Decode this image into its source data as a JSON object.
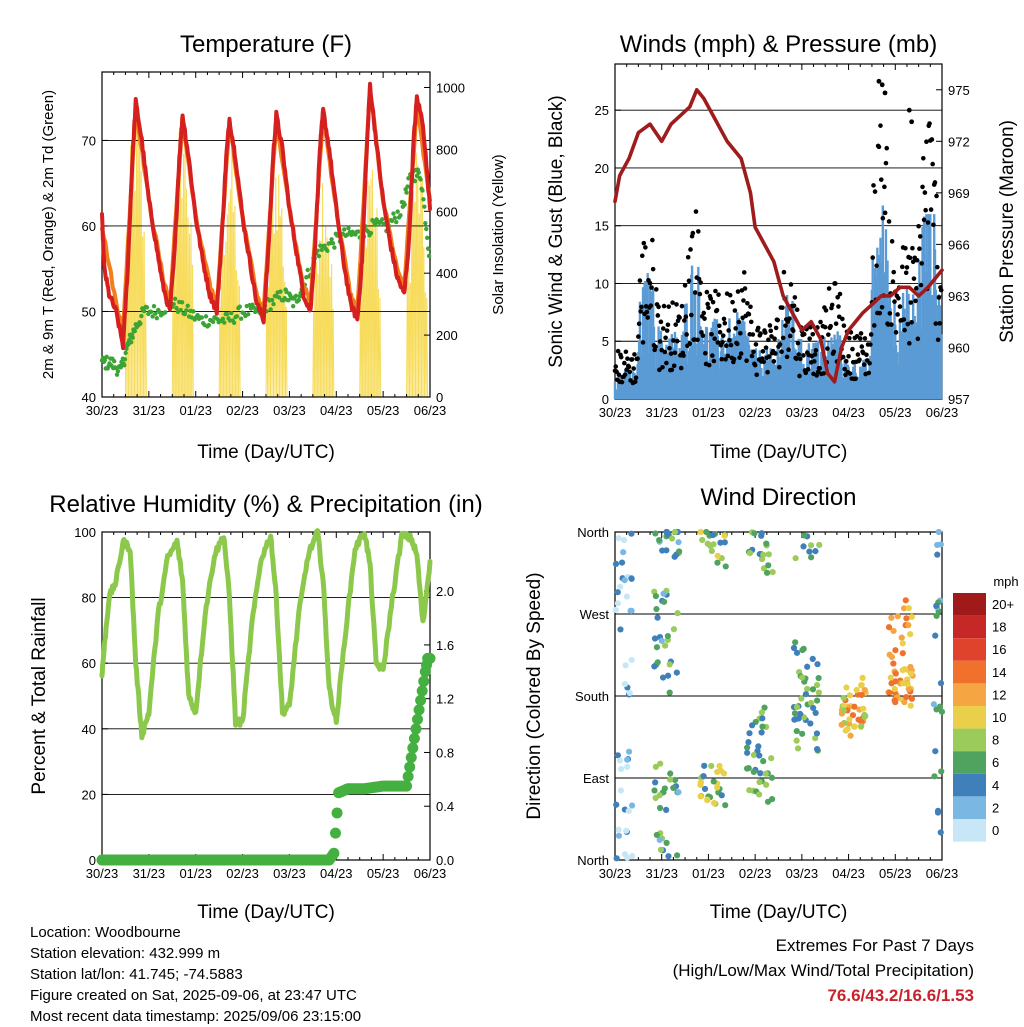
{
  "chart_data": [
    {
      "type": "line",
      "title": "Temperature (F)",
      "xlabel": "Time (Day/UTC)",
      "ylabel": "2m & 9m T (Red, Orange) & 2m Td (Green)",
      "y2label": "Solar Insolation (Yellow)",
      "ylim": [
        40,
        78
      ],
      "y2lim": [
        0,
        1050
      ],
      "yticks": [
        40,
        50,
        60,
        70
      ],
      "y2ticks": [
        0,
        200,
        400,
        600,
        800,
        1000
      ],
      "grid": "horizontal",
      "categories": [
        "30/23",
        "31/23",
        "01/23",
        "02/23",
        "03/23",
        "04/23",
        "05/23",
        "06/23"
      ],
      "series": [
        {
          "name": "2m T",
          "color": "#d62020",
          "x": [
            0,
            0.05,
            0.15,
            0.3,
            0.45,
            0.55,
            0.65,
            0.72,
            0.85,
            1.0,
            1.15,
            1.3,
            1.45,
            1.55,
            1.65,
            1.72,
            1.85,
            2.0,
            2.15,
            2.3,
            2.45,
            2.55,
            2.65,
            2.72,
            2.85,
            3.0,
            3.15,
            3.3,
            3.45,
            3.55,
            3.65,
            3.72,
            3.85,
            4.0,
            4.15,
            4.3,
            4.45,
            4.55,
            4.65,
            4.72,
            4.85,
            5.0,
            5.15,
            5.3,
            5.45,
            5.55,
            5.65,
            5.72,
            5.85,
            6.0,
            6.15,
            6.3,
            6.45,
            6.55,
            6.65,
            6.72,
            6.85,
            7.0
          ],
          "values": [
            61,
            55,
            52,
            50,
            46,
            55,
            68,
            74.5,
            70,
            63,
            58,
            53,
            50,
            57,
            68,
            73,
            68,
            61,
            56,
            52,
            50,
            58,
            68,
            72.5,
            68,
            61,
            56,
            51,
            49,
            57,
            68,
            73,
            69,
            62,
            57,
            52,
            50,
            58,
            69,
            73.5,
            69,
            62,
            56,
            51,
            49,
            56,
            69,
            76.5,
            70,
            63,
            58,
            54,
            52,
            58,
            70,
            75,
            72,
            62
          ]
        },
        {
          "name": "9m T",
          "color": "#f07f1c",
          "x": [
            0,
            0.3,
            0.45,
            0.72,
            1.0,
            1.3,
            1.45,
            1.72,
            2.0,
            2.3,
            2.45,
            2.72,
            3.0,
            3.3,
            3.45,
            3.72,
            4.0,
            4.3,
            4.45,
            4.72,
            5.0,
            5.3,
            5.45,
            5.72,
            6.0,
            6.3,
            6.45,
            6.72,
            7.0
          ],
          "values": [
            60,
            51,
            48,
            74,
            63,
            54,
            51,
            72.5,
            61,
            53,
            51,
            72,
            61,
            52,
            50,
            72.5,
            62,
            53,
            51,
            73,
            62,
            52,
            50,
            76,
            63,
            55,
            53,
            74,
            63
          ]
        },
        {
          "name": "2m Td",
          "color": "#3ca434",
          "x": [
            0,
            0.2,
            0.4,
            0.55,
            0.7,
            0.9,
            1.2,
            1.5,
            1.8,
            2.1,
            2.4,
            2.7,
            3.0,
            3.3,
            3.6,
            3.9,
            4.1,
            4.3,
            4.6,
            4.9,
            5.2,
            5.5,
            5.8,
            6.1,
            6.4,
            6.6,
            6.8,
            7.0
          ],
          "values": [
            44,
            44,
            43,
            46,
            48,
            50,
            50,
            51,
            50,
            49,
            49,
            49,
            50,
            50,
            51,
            52,
            51,
            53,
            57,
            58,
            59,
            59,
            60,
            60,
            62,
            66,
            66,
            56
          ]
        },
        {
          "name": "Solar Insolation",
          "color": "#f7dc5c",
          "axis": "y2",
          "daily_peak": [
            1000,
            1000,
            840,
            850,
            800,
            880,
            860,
            330
          ]
        }
      ]
    },
    {
      "type": "scatter",
      "title": "Winds (mph) & Pressure (mb)",
      "xlabel": "Time (Day/UTC)",
      "ylabel": "Sonic Wind & Gust (Blue, Black)",
      "y2label": "Station Pressure (Maroon)",
      "ylim": [
        0,
        29
      ],
      "y2lim": [
        957,
        976.5
      ],
      "yticks": [
        0,
        5,
        10,
        15,
        20,
        25
      ],
      "y2ticks": [
        957,
        960,
        963,
        966,
        969,
        972,
        975
      ],
      "grid": "horizontal",
      "categories": [
        "30/23",
        "31/23",
        "01/23",
        "02/23",
        "03/23",
        "04/23",
        "05/23",
        "06/23"
      ],
      "series": [
        {
          "name": "Pressure",
          "color": "#a01c1c",
          "axis": "y2",
          "x": [
            0,
            0.1,
            0.3,
            0.5,
            0.75,
            1.0,
            1.2,
            1.4,
            1.6,
            1.75,
            1.9,
            2.1,
            2.4,
            2.7,
            2.9,
            3.0,
            3.2,
            3.4,
            3.6,
            3.8,
            4.0,
            4.2,
            4.4,
            4.55,
            4.7,
            4.85,
            5.0,
            5.15,
            5.3,
            5.5,
            5.7,
            5.9,
            6.1,
            6.3,
            6.5,
            6.7,
            6.85,
            7.0
          ],
          "values": [
            968.5,
            970,
            971,
            972.5,
            973,
            972,
            973,
            973.5,
            974,
            975,
            974.5,
            973.5,
            972,
            971,
            969,
            967,
            966,
            965,
            963,
            962,
            961,
            961.5,
            960.5,
            958.5,
            958,
            960,
            961,
            961.5,
            962,
            962.5,
            963,
            963,
            963.5,
            963.5,
            963,
            963.5,
            964,
            964.5
          ]
        },
        {
          "name": "Wind",
          "color": "#5b9bd5",
          "daily_mean": [
            3,
            7,
            8,
            5,
            6,
            4,
            11,
            12,
            5
          ],
          "daily_max": [
            6,
            11,
            12,
            9,
            9,
            7,
            17,
            16,
            9
          ]
        },
        {
          "name": "Gust",
          "color": "#000000",
          "daily_mean": [
            5,
            10,
            11,
            8,
            8,
            7,
            16,
            17,
            8
          ],
          "daily_max": [
            8,
            15,
            17,
            12,
            13,
            10,
            27.5,
            25,
            13
          ]
        }
      ]
    },
    {
      "type": "line",
      "title": "Relative Humidity (%) & Precipitation (in)",
      "xlabel": "Time (Day/UTC)",
      "ylabel": "Percent & Total Rainfall",
      "ylim": [
        0,
        100
      ],
      "y2lim": [
        0,
        2.44
      ],
      "yticks": [
        0,
        20,
        40,
        60,
        80,
        100
      ],
      "y2ticks": [
        0.0,
        0.4,
        0.8,
        1.2,
        1.6,
        2.0
      ],
      "y2ticklabels": [
        "0.0",
        "0.4",
        "0.8",
        "1.2",
        "1.6",
        "2.0"
      ],
      "grid": "horizontal",
      "categories": [
        "30/23",
        "31/23",
        "01/23",
        "02/23",
        "03/23",
        "04/23",
        "05/23",
        "06/23"
      ],
      "series": [
        {
          "name": "RH",
          "color": "#8cc84b",
          "x": [
            0,
            0.05,
            0.15,
            0.3,
            0.45,
            0.6,
            0.72,
            0.85,
            1.0,
            1.2,
            1.4,
            1.6,
            1.72,
            1.85,
            2.0,
            2.2,
            2.4,
            2.6,
            2.72,
            2.85,
            3.0,
            3.2,
            3.4,
            3.6,
            3.72,
            3.85,
            4.0,
            4.2,
            4.4,
            4.6,
            4.72,
            4.85,
            5.0,
            5.2,
            5.4,
            5.6,
            5.72,
            5.85,
            6.0,
            6.2,
            6.4,
            6.6,
            6.72,
            6.85,
            7.0
          ],
          "values": [
            57,
            65,
            80,
            85,
            97,
            95,
            60,
            38,
            45,
            75,
            92,
            97,
            85,
            50,
            45,
            75,
            93,
            99,
            80,
            42,
            42,
            72,
            92,
            99,
            80,
            45,
            47,
            75,
            93,
            100,
            85,
            52,
            42,
            70,
            95,
            100,
            90,
            60,
            58,
            80,
            99,
            98,
            93,
            72,
            91
          ]
        },
        {
          "name": "Precipitation",
          "color": "#44b040",
          "axis": "y2",
          "x": [
            0,
            1,
            2,
            3,
            4,
            4.85,
            4.95,
            5.05,
            5.25,
            5.6,
            6.0,
            6.5,
            6.9,
            6.95,
            7.0
          ],
          "values": [
            0,
            0,
            0,
            0,
            0,
            0,
            0.05,
            0.5,
            0.53,
            0.53,
            0.55,
            0.55,
            1.4,
            1.5,
            1.5
          ]
        }
      ]
    },
    {
      "type": "scatter",
      "title": "Wind Direction",
      "xlabel": "Time (Day/UTC)",
      "ylabel": "Direction (Colored By Speed)",
      "ytick_labels": [
        "North",
        "East",
        "South",
        "West",
        "North"
      ],
      "ylim": [
        0,
        360
      ],
      "grid": "horizontal",
      "categories": [
        "30/23",
        "31/23",
        "01/23",
        "02/23",
        "03/23",
        "04/23",
        "05/23",
        "06/23"
      ],
      "colorbar": {
        "label": "mph",
        "levels": [
          "20+",
          "18",
          "16",
          "14",
          "12",
          "10",
          "8",
          "6",
          "4",
          "2",
          "0"
        ],
        "colors": [
          "#a01a1a",
          "#c62828",
          "#e0432b",
          "#f0712c",
          "#f5a642",
          "#ead04a",
          "#9bcb5a",
          "#4fa35f",
          "#3f7fba",
          "#7ab8e3",
          "#c7e7f7"
        ]
      },
      "points_by_day": [
        {
          "day": 0,
          "dirs": [
            20,
            340,
            300,
            270,
            200,
            100,
            60
          ],
          "speed": 2
        },
        {
          "day": 1,
          "dirs": [
            350,
            345,
            280,
            250,
            200,
            90,
            60,
            20
          ],
          "speed": 5
        },
        {
          "day": 2,
          "dirs": [
            350,
            340,
            75,
            80,
            85
          ],
          "speed": 7
        },
        {
          "day": 3,
          "dirs": [
            340,
            330,
            150,
            120,
            100,
            80
          ],
          "speed": 6
        },
        {
          "day": 4,
          "dirs": [
            345,
            220,
            190,
            170,
            150,
            140
          ],
          "speed": 6
        },
        {
          "day": 5,
          "dirs": [
            180,
            175,
            165,
            160,
            155
          ],
          "speed": 11
        },
        {
          "day": 6,
          "dirs": [
            270,
            240,
            200,
            195,
            190,
            185
          ],
          "speed": 12
        },
        {
          "day": 7,
          "dirs": [
            350,
            330,
            280,
            260,
            180,
            100,
            50
          ],
          "speed": 4
        }
      ]
    }
  ],
  "footer": {
    "location": "Location: Woodbourne",
    "elevation": "Station elevation: 432.999 m",
    "latlon": "Station lat/lon: 41.745; -74.5883",
    "created": "Figure created on Sat, 2025-09-06, at 23:47 UTC",
    "timestamp": "Most recent data timestamp: 2025/09/06 23:15:00"
  },
  "extremes": {
    "heading": "Extremes For Past 7 Days",
    "subheading": "(High/Low/Max Wind/Total Precipitation)",
    "value": "76.6/43.2/16.6/1.53"
  }
}
